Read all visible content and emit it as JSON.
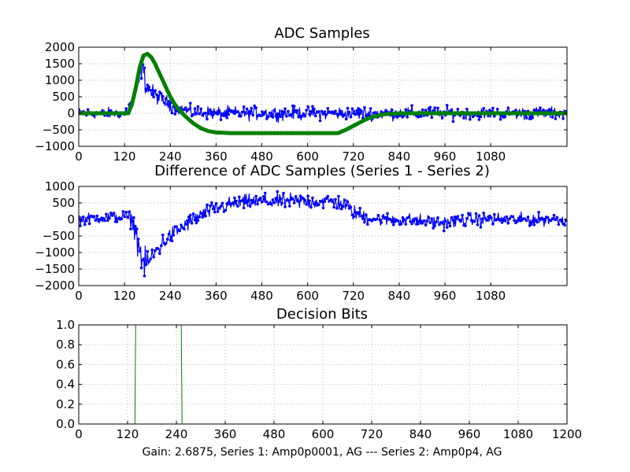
{
  "footer": "Gain: 2.6875, Series 1: Amp0p0001, AG --- Series 2: Amp0p4, AG",
  "colors": {
    "series_blue": "#0000ff",
    "series_green": "#008000",
    "grid": "#b0b0b0"
  },
  "chart_data": [
    {
      "type": "line",
      "title": "ADC Samples",
      "xlim": [
        0,
        1280
      ],
      "ylim": [
        -1000,
        2000
      ],
      "xticks": [
        0,
        120,
        240,
        360,
        480,
        600,
        720,
        840,
        960,
        1080
      ],
      "yticks": [
        -1000,
        -500,
        0,
        500,
        1000,
        1500,
        2000
      ],
      "grid": true,
      "series": [
        {
          "color": "#0000ff",
          "style": "line-with-dots",
          "x": [
            0,
            120,
            140,
            150,
            160,
            165,
            170,
            175,
            180,
            190,
            200,
            220,
            240,
            260,
            280,
            300,
            360,
            420,
            480,
            540,
            600,
            660,
            700,
            720,
            780,
            840,
            900,
            960,
            1020,
            1080,
            1140,
            1200,
            1280
          ],
          "y": [
            0,
            0,
            300,
            700,
            1100,
            1500,
            1200,
            900,
            800,
            650,
            550,
            400,
            250,
            150,
            80,
            30,
            0,
            0,
            0,
            0,
            0,
            0,
            0,
            0,
            0,
            0,
            0,
            0,
            0,
            0,
            0,
            0,
            0
          ],
          "noise": [
            180,
            180,
            250,
            400,
            450,
            450,
            400,
            350,
            320,
            280,
            250,
            230,
            220,
            200,
            200,
            220,
            220,
            220,
            220,
            220,
            220,
            220,
            220,
            220,
            220,
            220,
            220,
            220,
            200,
            200,
            200,
            200,
            200
          ]
        },
        {
          "color": "#008000",
          "style": "thick-line",
          "x": [
            0,
            130,
            140,
            150,
            160,
            170,
            180,
            190,
            200,
            210,
            220,
            230,
            240,
            250,
            260,
            280,
            300,
            320,
            340,
            360,
            400,
            450,
            500,
            550,
            600,
            650,
            680,
            700,
            720,
            740,
            760,
            780,
            800,
            840,
            900,
            960,
            1020,
            1080,
            1280
          ],
          "y": [
            0,
            0,
            300,
            800,
            1400,
            1750,
            1800,
            1700,
            1500,
            1250,
            1000,
            750,
            500,
            300,
            150,
            -100,
            -300,
            -450,
            -540,
            -580,
            -600,
            -600,
            -600,
            -600,
            -600,
            -600,
            -600,
            -500,
            -380,
            -260,
            -150,
            -80,
            -30,
            0,
            0,
            0,
            0,
            0,
            0
          ]
        }
      ]
    },
    {
      "type": "line",
      "title": "Difference of ADC Samples (Series 1 - Series 2)",
      "xlim": [
        0,
        1280
      ],
      "ylim": [
        -2000,
        1000
      ],
      "xticks": [
        0,
        120,
        240,
        360,
        480,
        600,
        720,
        840,
        960,
        1080
      ],
      "yticks": [
        -2000,
        -1500,
        -1000,
        -500,
        0,
        500,
        1000
      ],
      "grid": true,
      "series": [
        {
          "color": "#0000ff",
          "style": "line-with-dots",
          "x": [
            0,
            60,
            120,
            140,
            150,
            160,
            170,
            180,
            190,
            200,
            220,
            240,
            270,
            300,
            340,
            380,
            420,
            480,
            540,
            600,
            660,
            700,
            720,
            760,
            800,
            840,
            900,
            960,
            1020,
            1080,
            1140,
            1200,
            1280
          ],
          "y": [
            0,
            50,
            100,
            0,
            -400,
            -900,
            -1400,
            -1300,
            -1200,
            -1000,
            -700,
            -500,
            -250,
            0,
            250,
            400,
            500,
            550,
            550,
            550,
            550,
            450,
            200,
            50,
            0,
            0,
            -50,
            -100,
            0,
            0,
            0,
            0,
            0
          ],
          "noise": [
            180,
            180,
            200,
            300,
            400,
            500,
            500,
            450,
            400,
            350,
            300,
            280,
            260,
            250,
            250,
            250,
            250,
            260,
            260,
            260,
            260,
            260,
            250,
            230,
            220,
            220,
            220,
            220,
            220,
            220,
            200,
            200,
            200
          ]
        }
      ]
    },
    {
      "type": "line",
      "title": "Decision Bits",
      "xlim": [
        0,
        1200
      ],
      "ylim": [
        0,
        1.0
      ],
      "xticks": [
        0,
        120,
        240,
        360,
        480,
        600,
        720,
        840,
        960,
        1080,
        1200
      ],
      "yticks": [
        0.0,
        0.2,
        0.4,
        0.6,
        0.8,
        1.0
      ],
      "grid": true,
      "series": [
        {
          "color": "#008000",
          "style": "thin-line",
          "x": [
            0,
            138,
            140,
            252,
            254,
            1200
          ],
          "y": [
            0,
            0,
            1,
            1,
            0,
            0
          ]
        },
        {
          "color": "#0000ff",
          "style": "thin-line",
          "x": [
            0,
            1200
          ],
          "y": [
            0,
            0
          ]
        }
      ]
    }
  ]
}
